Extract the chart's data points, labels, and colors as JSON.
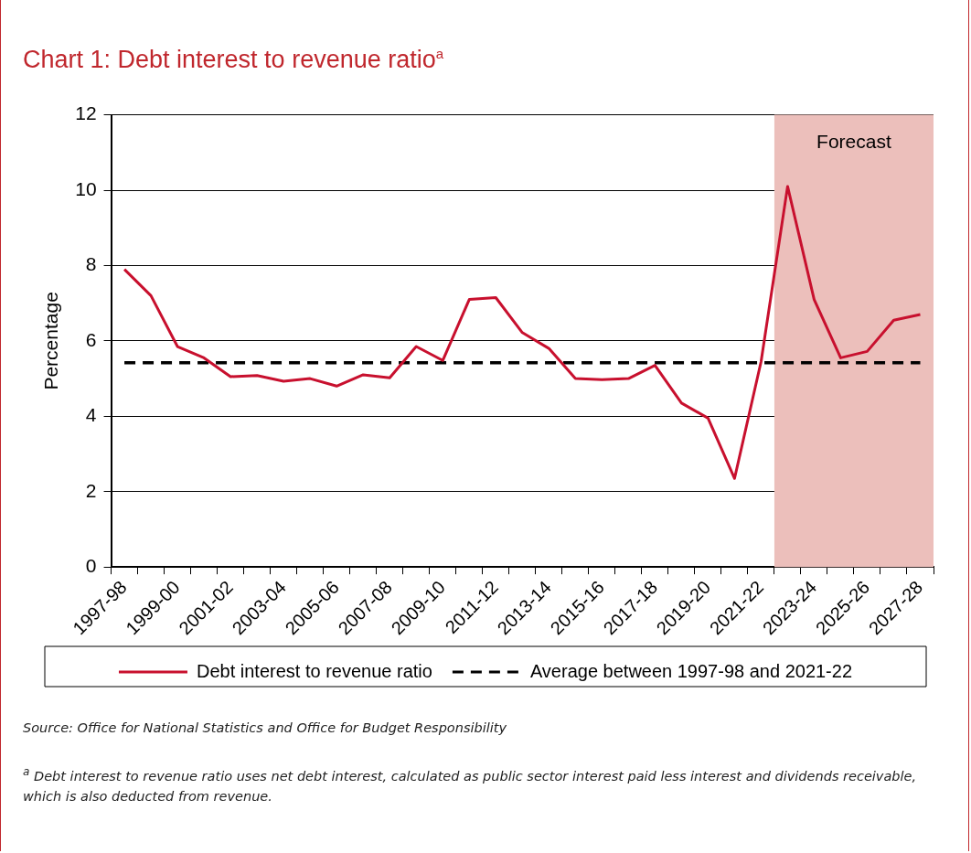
{
  "chart_data": {
    "type": "line",
    "title": "Chart 1: Debt interest to revenue ratio$^{a}$",
    "ylabel": "Percentage",
    "categories": [
      "1997-98",
      null,
      "1999-00",
      null,
      "2001-02",
      null,
      "2003-04",
      null,
      "2005-06",
      null,
      "2007-08",
      null,
      "2009-10",
      null,
      "2011-12",
      null,
      "2013-14",
      null,
      "2015-16",
      null,
      "2017-18",
      null,
      "2019-20",
      null,
      "2021-22",
      null,
      "2023-24",
      null,
      "2025-26",
      null,
      "2027-28"
    ],
    "series": [
      {
        "name": "Debt interest to revenue ratio",
        "color": "#c8102e",
        "line_style": "solid",
        "values": [
          7.9,
          7.2,
          5.85,
          5.55,
          5.05,
          5.08,
          4.93,
          5.0,
          4.8,
          5.1,
          5.02,
          5.85,
          5.48,
          7.1,
          7.15,
          6.22,
          5.8,
          5.0,
          4.97,
          5.0,
          5.35,
          4.35,
          3.95,
          2.35,
          5.45,
          10.1,
          7.1,
          5.55,
          5.72,
          6.55,
          6.7
        ]
      },
      {
        "name": "Average between 1997-98 and 2021-22",
        "color": "#000000",
        "line_style": "dashed",
        "values": [
          5.42,
          5.42,
          5.42,
          5.42,
          5.42,
          5.42,
          5.42,
          5.42,
          5.42,
          5.42,
          5.42,
          5.42,
          5.42,
          5.42,
          5.42,
          5.42,
          5.42,
          5.42,
          5.42,
          5.42,
          5.42,
          5.42,
          5.42,
          5.42,
          5.42,
          5.42,
          5.42,
          5.42,
          5.42,
          5.42,
          5.42
        ]
      }
    ],
    "bands": [
      {
        "axis": "x",
        "from": "2021-22",
        "to": "2027-28",
        "label": "Forecast",
        "color": "#ecbfbb"
      }
    ],
    "ylim": [
      0,
      12
    ],
    "yticks": [
      0,
      2,
      4,
      6,
      8,
      10,
      12
    ],
    "grid": "y",
    "legend": "bottom",
    "marker": "none",
    "annotations": [
      "Source: Office for National Statistics and Office for Budget Responsibility",
      "$^{a}$ Debt interest to revenue ratio uses net debt interest, calculated as public sector interest paid less interest and dividends receivable, which is also deducted from revenue."
    ]
  }
}
